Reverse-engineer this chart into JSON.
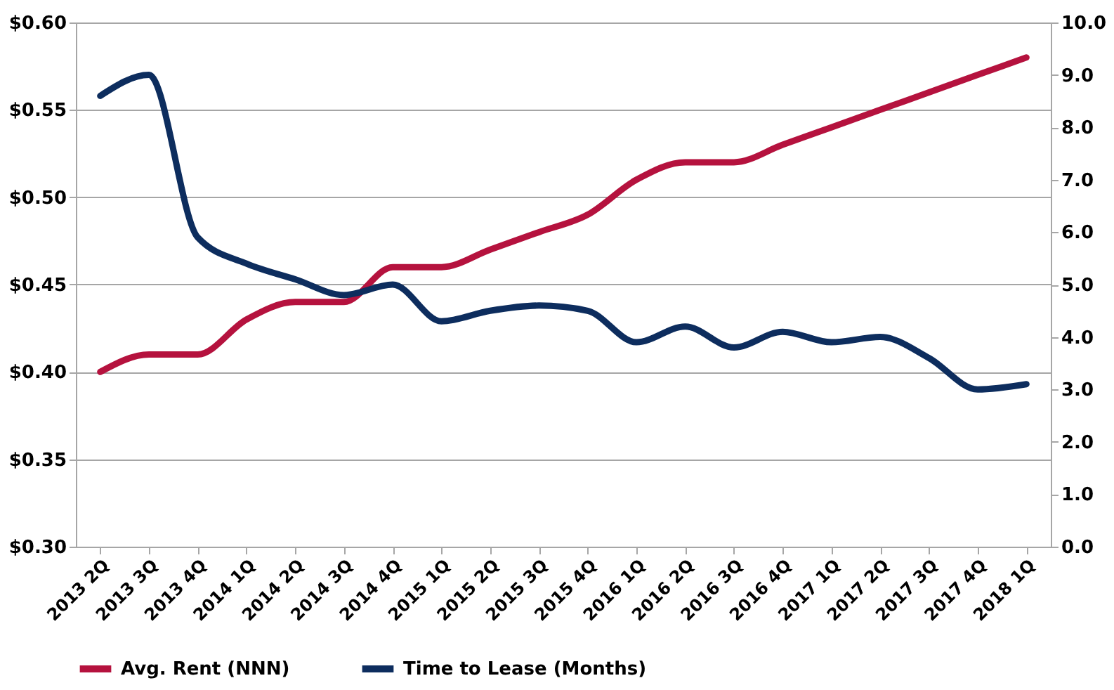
{
  "chart_data": {
    "type": "line",
    "categories": [
      "2013 2Q",
      "2013 3Q",
      "2013 4Q",
      "2014 1Q",
      "2014 2Q",
      "2014 3Q",
      "2014 4Q",
      "2015 1Q",
      "2015 2Q",
      "2015 3Q",
      "2015 4Q",
      "2016 1Q",
      "2016 2Q",
      "2016 3Q",
      "2016 4Q",
      "2017 1Q",
      "2017 2Q",
      "2017 3Q",
      "2017 4Q",
      "2018 1Q"
    ],
    "series": [
      {
        "name": "Avg. Rent (NNN)",
        "color": "#b5123e",
        "values": [
          0.4,
          0.41,
          0.41,
          0.43,
          0.44,
          0.44,
          0.46,
          0.46,
          0.47,
          0.48,
          0.49,
          0.51,
          0.52,
          0.52,
          0.53,
          0.54,
          0.55,
          0.56,
          0.57,
          0.58
        ]
      },
      {
        "name": "Time to Lease (Months)",
        "color": "#0d2d5e",
        "axis": "y2",
        "values": [
          8.6,
          9.0,
          5.9,
          5.4,
          5.1,
          4.8,
          5.0,
          4.3,
          4.5,
          4.6,
          4.5,
          3.9,
          4.2,
          3.8,
          4.1,
          3.9,
          4.0,
          3.6,
          3.0,
          3.1
        ]
      }
    ],
    "ylim": [
      0.3,
      0.6
    ],
    "yticks": [
      {
        "value": 0.3,
        "label": "$0.30"
      },
      {
        "value": 0.35,
        "label": "$0.35"
      },
      {
        "value": 0.4,
        "label": "$0.40"
      },
      {
        "value": 0.45,
        "label": "$0.45"
      },
      {
        "value": 0.5,
        "label": "$0.50"
      },
      {
        "value": 0.55,
        "label": "$0.55"
      },
      {
        "value": 0.6,
        "label": "$0.60"
      }
    ],
    "y2lim": [
      0,
      10
    ],
    "y2ticks": [
      {
        "value": 0,
        "label": "0.0"
      },
      {
        "value": 1,
        "label": "1.0"
      },
      {
        "value": 2,
        "label": "2.0"
      },
      {
        "value": 3,
        "label": "3.0"
      },
      {
        "value": 4,
        "label": "4.0"
      },
      {
        "value": 5,
        "label": "5.0"
      },
      {
        "value": 6,
        "label": "6.0"
      },
      {
        "value": 7,
        "label": "7.0"
      },
      {
        "value": 8,
        "label": "8.0"
      },
      {
        "value": 9,
        "label": "9.0"
      },
      {
        "value": 10,
        "label": "10.0"
      }
    ],
    "grid": "y",
    "legend": "bottom",
    "marker": "none",
    "line_style": "solid"
  }
}
